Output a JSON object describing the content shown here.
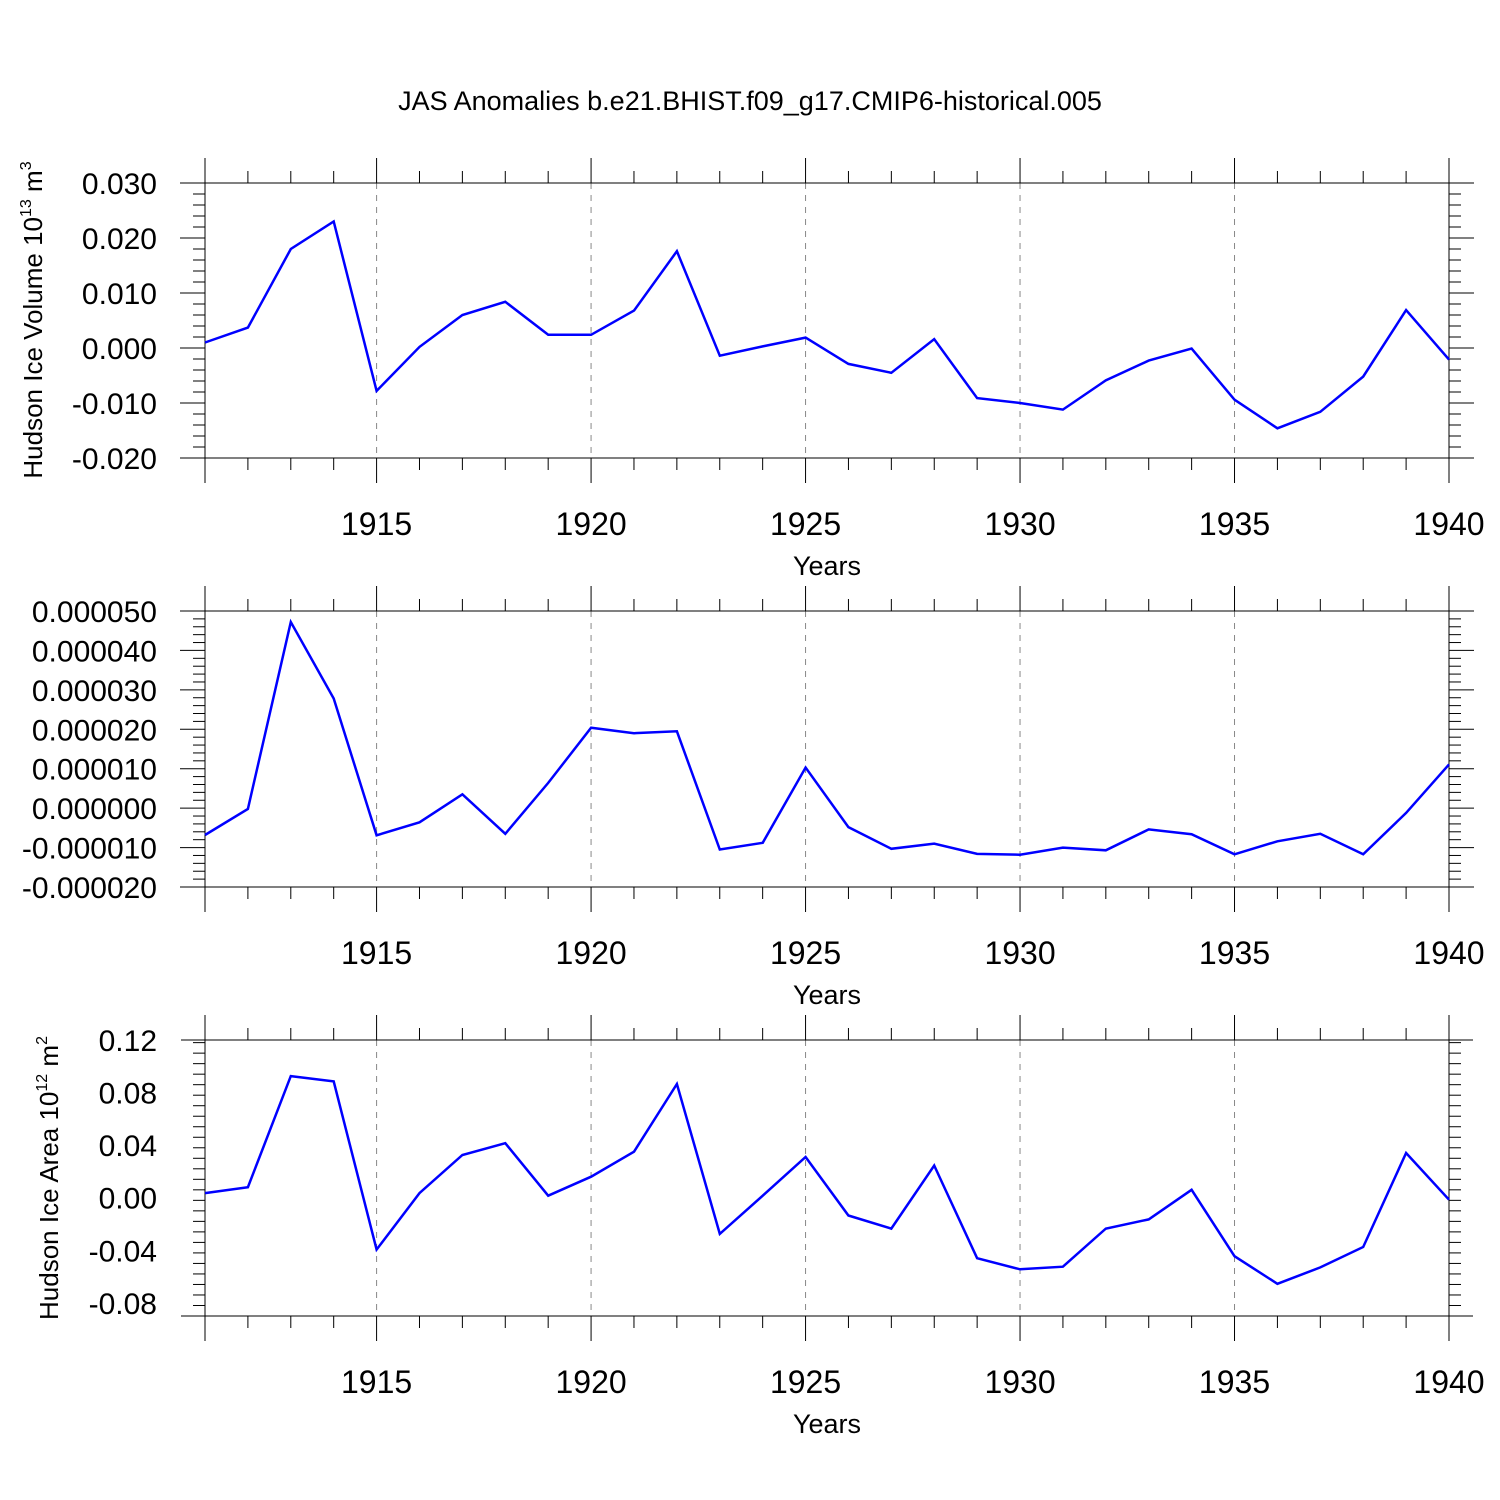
{
  "title": "JAS Anomalies b.e21.BHIST.f09_g17.CMIP6-historical.005",
  "colors": {
    "series": "#0000ff",
    "axes": "#000000",
    "grid": "#888888"
  },
  "chart_data": [
    {
      "type": "line",
      "xlabel": "Years",
      "ylabel": {
        "text": "Hudson Ice Volume 10",
        "sup": "13",
        "unit": " m",
        "unit_sup": "3"
      },
      "xlim": [
        1911,
        1940
      ],
      "ylim": [
        -0.02,
        0.03
      ],
      "x_ticks": [
        "1915",
        "1920",
        "1925",
        "1930",
        "1935",
        "1940"
      ],
      "y_ticks": [
        "0.030",
        "0.020",
        "0.010",
        "0.000",
        "-0.010",
        "-0.020"
      ],
      "grid": "vertical dashed at major x ticks",
      "x": [
        1911,
        1912,
        1913,
        1914,
        1915,
        1916,
        1917,
        1918,
        1919,
        1920,
        1921,
        1922,
        1923,
        1924,
        1925,
        1926,
        1927,
        1928,
        1929,
        1930,
        1931,
        1932,
        1933,
        1934,
        1935,
        1936,
        1937,
        1938,
        1939,
        1940
      ],
      "values": [
        0.001,
        0.0037,
        0.018,
        0.023,
        -0.0078,
        0.0002,
        0.006,
        0.0084,
        0.0024,
        0.0024,
        0.0068,
        0.0176,
        -0.0014,
        0.0003,
        0.0019,
        -0.0029,
        -0.0045,
        0.0016,
        -0.0091,
        -0.01,
        -0.0112,
        -0.0059,
        -0.0023,
        -0.0001,
        -0.0094,
        -0.0146,
        -0.0116,
        -0.0052,
        0.0069,
        -0.0021
      ]
    },
    {
      "type": "line",
      "xlabel": "Years",
      "ylabel": null,
      "xlim": [
        1911,
        1940
      ],
      "ylim": [
        -2e-05,
        5e-05
      ],
      "x_ticks": [
        "1915",
        "1920",
        "1925",
        "1930",
        "1935",
        "1940"
      ],
      "y_ticks": [
        "0.000050",
        "0.000040",
        "0.000030",
        "0.000020",
        "0.000010",
        "0.000000",
        "-0.000010",
        "-0.000020"
      ],
      "grid": "vertical dashed at major x ticks",
      "x": [
        1911,
        1912,
        1913,
        1914,
        1915,
        1916,
        1917,
        1918,
        1919,
        1920,
        1921,
        1922,
        1923,
        1924,
        1925,
        1926,
        1927,
        1928,
        1929,
        1930,
        1931,
        1932,
        1933,
        1934,
        1935,
        1936,
        1937,
        1938,
        1939,
        1940
      ],
      "values": [
        -6.8e-06,
        -2e-07,
        4.72e-05,
        2.78e-05,
        -6.9e-06,
        -3.6e-06,
        3.5e-06,
        -6.5e-06,
        6.4e-06,
        2.04e-05,
        1.9e-05,
        1.95e-05,
        -1.05e-05,
        -8.8e-06,
        1.03e-05,
        -4.8e-06,
        -1.03e-05,
        -9e-06,
        -1.16e-05,
        -1.18e-05,
        -1e-05,
        -1.07e-05,
        -5.4e-06,
        -6.6e-06,
        -1.17e-05,
        -8.4e-06,
        -6.5e-06,
        -1.17e-05,
        -1.2e-06,
        1.11e-05
      ]
    },
    {
      "type": "line",
      "xlabel": "Years",
      "ylabel": {
        "text": "Hudson Ice Area 10",
        "sup": "12",
        "unit": " m",
        "unit_sup": "2"
      },
      "xlim": [
        1911,
        1940
      ],
      "ylim": [
        -0.09,
        0.12
      ],
      "x_ticks": [
        "1915",
        "1920",
        "1925",
        "1930",
        "1935",
        "1940"
      ],
      "y_ticks": [
        "0.12",
        "0.08",
        "0.04",
        "0.00",
        "-0.04",
        "-0.08"
      ],
      "grid": "vertical dashed at major x ticks",
      "x": [
        1911,
        1912,
        1913,
        1914,
        1915,
        1916,
        1917,
        1918,
        1919,
        1920,
        1921,
        1922,
        1923,
        1924,
        1925,
        1926,
        1927,
        1928,
        1929,
        1930,
        1931,
        1932,
        1933,
        1934,
        1935,
        1936,
        1937,
        1938,
        1939,
        1940
      ],
      "values": [
        0.0035,
        0.008,
        0.0925,
        0.0885,
        -0.0395,
        0.0035,
        0.0325,
        0.0415,
        0.0015,
        0.016,
        0.035,
        0.0865,
        -0.0275,
        0.0015,
        0.031,
        -0.0135,
        -0.0235,
        0.0245,
        -0.046,
        -0.0545,
        -0.0525,
        -0.0235,
        -0.0165,
        0.006,
        -0.0445,
        -0.0655,
        -0.053,
        -0.0375,
        0.034,
        -0.0015
      ]
    }
  ]
}
